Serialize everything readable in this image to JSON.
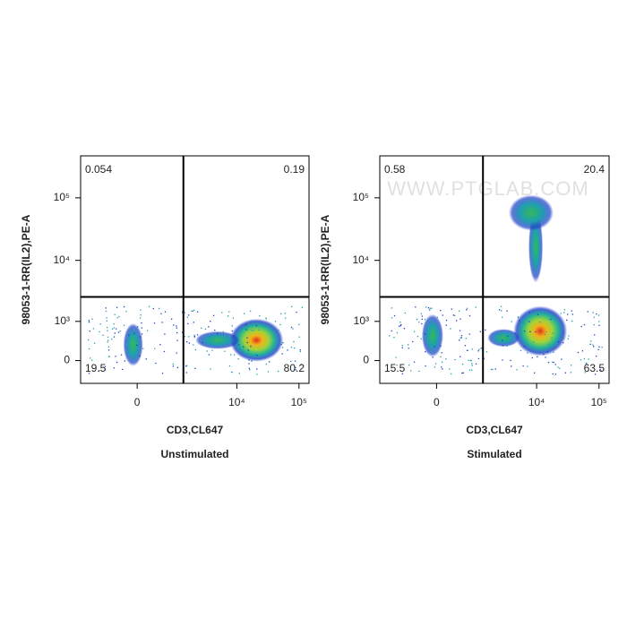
{
  "watermark": "WWW.PTGLAB.COM",
  "chart_data": [
    {
      "type": "scatter",
      "title": "Unstimulated",
      "x_label": "CD3,CL647",
      "y_label": "98053-1-RR(IL2),PE-A",
      "xscale": "asinh",
      "yscale": "asinh",
      "xlim": [
        -2000,
        145000
      ],
      "ylim": [
        -470,
        469000
      ],
      "xticks": [
        0,
        {
          "value": 10000,
          "label": "10⁴"
        },
        {
          "value": 100000,
          "label": "10⁵"
        }
      ],
      "yticks": [
        0,
        {
          "value": 1000,
          "label": "10³"
        },
        {
          "value": 10000,
          "label": "10⁴"
        },
        {
          "value": 100000,
          "label": "10⁵"
        }
      ],
      "quadrants": [
        0.054,
        0.19,
        19.5,
        80.2
      ]
    },
    {
      "type": "scatter",
      "title": "Stimulated",
      "x_label": "CD3,CL647",
      "y_label": "98053-1-RR(IL2),PE-A",
      "xscale": "asinh",
      "yscale": "asinh",
      "xlim": [
        -2000,
        145000
      ],
      "ylim": [
        -470,
        469000
      ],
      "xticks": [
        0,
        {
          "value": 10000,
          "label": "10⁴"
        },
        {
          "value": 100000,
          "label": "10⁵"
        }
      ],
      "yticks": [
        0,
        {
          "value": 1000,
          "label": "10³"
        },
        {
          "value": 10000,
          "label": "10⁴"
        },
        {
          "value": 100000,
          "label": "10⁵"
        }
      ],
      "quadrants": [
        0.58,
        20.4,
        15.5,
        63.5
      ]
    }
  ]
}
